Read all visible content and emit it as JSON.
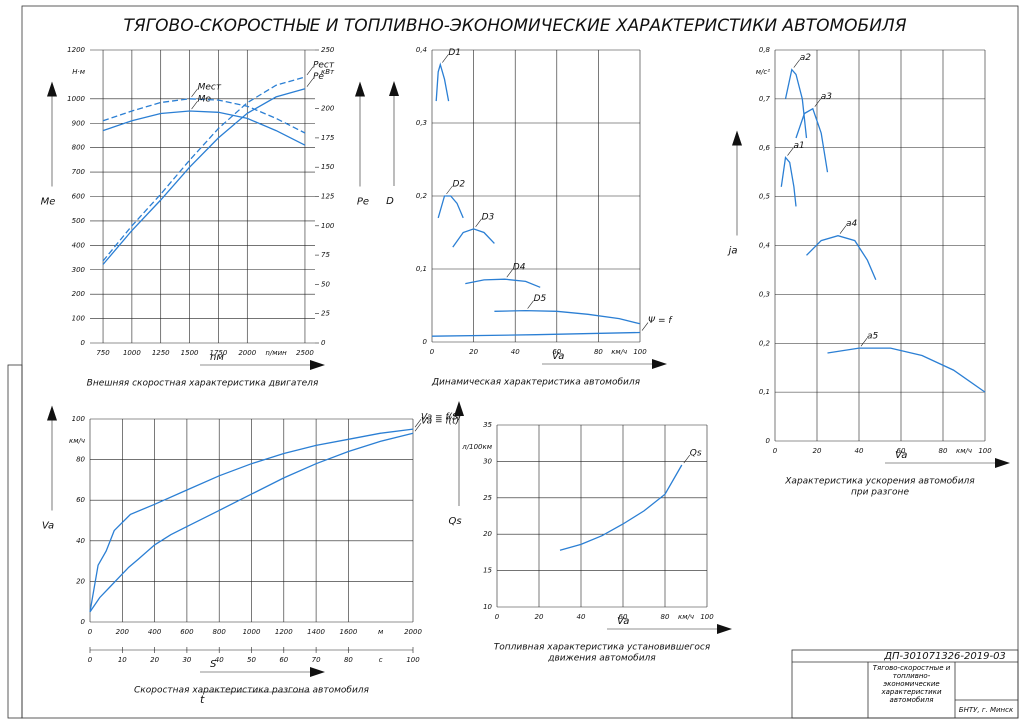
{
  "title": "ТЯГОВО-СКОРОСТНЫЕ И ТОПЛИВНО-ЭКОНОМИЧЕСКИЕ ХАРАКТЕРИСТИКИ АВТОМОБИЛЯ",
  "stamp": {
    "code": "ДП-301071326-2019-03",
    "name": "Тягово-скоростные и топливно-экономические характеристики автомобиля",
    "org": "БНТУ, г. Минск"
  },
  "chart_data": [
    {
      "type": "line",
      "caption": [
        "Внешняя скоростная характеристика двигателя"
      ],
      "xlabel": "nм",
      "ylabel": "Me",
      "y2label": "Pe",
      "xunit": "n/мин",
      "yunit": "Н·м",
      "y2unit": "кВт",
      "xlim": [
        637,
        2587
      ],
      "xticks": [
        750,
        1000,
        1250,
        1500,
        1750,
        2000,
        2500
      ],
      "ylim": [
        0,
        1200
      ],
      "yticks": [
        0,
        100,
        200,
        300,
        400,
        500,
        600,
        700,
        800,
        900,
        1000,
        1200
      ],
      "y2lim": [
        0,
        250
      ],
      "y2ticks": [
        0,
        25,
        50,
        75,
        100,
        125,
        150,
        175,
        200,
        250
      ],
      "series": [
        {
          "name": "Meст",
          "color": "#2b7fd4",
          "line_style": "dashed",
          "x": [
            750,
            1000,
            1250,
            1500,
            1750,
            2000,
            2250,
            2500
          ],
          "values": [
            910,
            950,
            985,
            1000,
            995,
            970,
            920,
            860
          ]
        },
        {
          "name": "Me",
          "color": "#2b7fd4",
          "line_style": "solid",
          "x": [
            750,
            1000,
            1250,
            1500,
            1750,
            2000,
            2250,
            2500
          ],
          "values": [
            870,
            910,
            940,
            950,
            945,
            920,
            870,
            810
          ]
        },
        {
          "name": "Peст",
          "color": "#2b7fd4",
          "line_style": "dashed",
          "axis": "y2",
          "x": [
            750,
            1000,
            1250,
            1500,
            1750,
            2000,
            2250,
            2500
          ],
          "values": [
            70,
            100,
            127,
            156,
            183,
            205,
            220,
            227
          ]
        },
        {
          "name": "Pe",
          "color": "#2b7fd4",
          "line_style": "solid",
          "axis": "y2",
          "x": [
            750,
            1000,
            1250,
            1500,
            1750,
            2000,
            2250,
            2500
          ],
          "values": [
            67,
            96,
            122,
            150,
            175,
            196,
            210,
            217
          ]
        }
      ]
    },
    {
      "type": "line",
      "caption": [
        "Динамическая характеристика автомобиля"
      ],
      "xlabel": "Va",
      "ylabel": "D",
      "xunit": "км/ч",
      "xlim": [
        0,
        100
      ],
      "xticks": [
        0,
        20,
        40,
        60,
        80,
        100
      ],
      "ylim": [
        0,
        0.4
      ],
      "yticks": [
        0,
        {
          "value": 0.1,
          "label": "0,1"
        },
        {
          "value": 0.2,
          "label": "0,2"
        },
        {
          "value": 0.3,
          "label": "0,3"
        },
        {
          "value": 0.4,
          "label": "0,4"
        }
      ],
      "series": [
        {
          "name": "D1",
          "color": "#2b7fd4",
          "line_style": "solid",
          "x": [
            2,
            3,
            4,
            6,
            8
          ],
          "values": [
            0.33,
            0.37,
            0.38,
            0.36,
            0.33
          ]
        },
        {
          "name": "D2",
          "color": "#2b7fd4",
          "line_style": "solid",
          "x": [
            3,
            6,
            9,
            12,
            15
          ],
          "values": [
            0.17,
            0.2,
            0.2,
            0.19,
            0.17
          ]
        },
        {
          "name": "D3",
          "color": "#2b7fd4",
          "line_style": "solid",
          "x": [
            10,
            15,
            20,
            25,
            30
          ],
          "values": [
            0.13,
            0.15,
            0.155,
            0.15,
            0.135
          ]
        },
        {
          "name": "D4",
          "color": "#2b7fd4",
          "line_style": "solid",
          "x": [
            16,
            25,
            35,
            45,
            52
          ],
          "values": [
            0.08,
            0.085,
            0.086,
            0.083,
            0.075
          ]
        },
        {
          "name": "D5",
          "color": "#2b7fd4",
          "line_style": "solid",
          "x": [
            30,
            45,
            60,
            75,
            90,
            100
          ],
          "values": [
            0.042,
            0.043,
            0.042,
            0.038,
            0.032,
            0.025
          ]
        },
        {
          "name": "Ψ = f",
          "color": "#2b7fd4",
          "line_style": "solid",
          "x": [
            0,
            50,
            100
          ],
          "values": [
            0.008,
            0.01,
            0.013
          ]
        }
      ]
    },
    {
      "type": "line",
      "caption": [
        "Характеристика ускорения автомобиля",
        "при разгоне"
      ],
      "xlabel": "Va",
      "ylabel": "ja",
      "xunit": "км/ч",
      "yunit": "м/с²",
      "xlim": [
        0,
        100
      ],
      "xticks": [
        0,
        20,
        40,
        60,
        80,
        100
      ],
      "ylim": [
        0,
        0.8
      ],
      "yticks": [
        0,
        {
          "value": 0.1,
          "label": "0,1"
        },
        {
          "value": 0.2,
          "label": "0,2"
        },
        {
          "value": 0.3,
          "label": "0,3"
        },
        {
          "value": 0.4,
          "label": "0,4"
        },
        {
          "value": 0.5,
          "label": "0,5"
        },
        {
          "value": 0.6,
          "label": "0,6"
        },
        {
          "value": 0.7,
          "label": "0,7"
        },
        {
          "value": 0.8,
          "label": "0,8"
        }
      ],
      "series": [
        {
          "name": "a1",
          "color": "#2b7fd4",
          "line_style": "solid",
          "x": [
            3,
            5,
            7,
            9,
            10
          ],
          "values": [
            0.52,
            0.58,
            0.57,
            0.52,
            0.48
          ]
        },
        {
          "name": "a2",
          "color": "#2b7fd4",
          "line_style": "solid",
          "x": [
            5,
            8,
            10,
            13,
            15
          ],
          "values": [
            0.7,
            0.76,
            0.75,
            0.7,
            0.62
          ]
        },
        {
          "name": "a3",
          "color": "#2b7fd4",
          "line_style": "solid",
          "x": [
            10,
            14,
            18,
            22,
            25
          ],
          "values": [
            0.62,
            0.67,
            0.68,
            0.63,
            0.55
          ]
        },
        {
          "name": "a4",
          "color": "#2b7fd4",
          "line_style": "solid",
          "x": [
            15,
            22,
            30,
            38,
            44,
            48
          ],
          "values": [
            0.38,
            0.41,
            0.42,
            0.41,
            0.37,
            0.33
          ]
        },
        {
          "name": "a5",
          "color": "#2b7fd4",
          "line_style": "solid",
          "x": [
            25,
            40,
            55,
            70,
            85,
            100
          ],
          "values": [
            0.18,
            0.19,
            0.19,
            0.175,
            0.145,
            0.1
          ]
        }
      ]
    },
    {
      "type": "line",
      "caption": [
        "Скоростная характеристика разгона автомобиля"
      ],
      "xlabel": "S",
      "x2label": "t",
      "ylabel": "Va",
      "xunit": "м",
      "x2unit": "с",
      "yunit": "км/ч",
      "xlim": [
        0,
        2000
      ],
      "xticks": [
        0,
        200,
        400,
        600,
        800,
        1000,
        1200,
        1400,
        1600,
        2000
      ],
      "x2lim": [
        0,
        100
      ],
      "x2ticks": [
        0,
        10,
        20,
        30,
        40,
        50,
        60,
        70,
        80,
        100
      ],
      "ylim": [
        0,
        100
      ],
      "yticks": [
        0,
        20,
        40,
        60,
        80,
        100
      ],
      "series": [
        {
          "name": "Va = f(S)",
          "color": "#2b7fd4",
          "line_style": "solid",
          "x": [
            0,
            50,
            100,
            150,
            250,
            400,
            600,
            800,
            1000,
            1200,
            1400,
            1600,
            1800,
            2000
          ],
          "values": [
            5,
            28,
            35,
            45,
            53,
            58,
            65,
            72,
            78,
            83,
            87,
            90,
            93,
            95
          ]
        },
        {
          "name": "Va = f(t)",
          "color": "#2b7fd4",
          "line_style": "solid",
          "axis": "x2",
          "x": [
            0,
            3,
            6,
            9,
            12,
            15,
            20,
            25,
            30,
            40,
            50,
            60,
            70,
            80,
            90,
            100
          ],
          "values": [
            5,
            12,
            17,
            22,
            27,
            31,
            38,
            43,
            47,
            55,
            63,
            71,
            78,
            84,
            89,
            93
          ]
        }
      ]
    },
    {
      "type": "line",
      "caption": [
        "Топливная характеристика установившегося",
        "движения автомобиля"
      ],
      "xlabel": "Va",
      "ylabel": "Qs",
      "xunit": "км/ч",
      "yunit": "л/100км",
      "xlim": [
        0,
        100
      ],
      "xticks": [
        0,
        20,
        40,
        60,
        80,
        100
      ],
      "ylim": [
        10,
        35
      ],
      "yticks": [
        10,
        15,
        20,
        25,
        30,
        35
      ],
      "series": [
        {
          "name": "Qs",
          "color": "#2b7fd4",
          "line_style": "solid",
          "x": [
            30,
            40,
            50,
            60,
            70,
            80,
            88
          ],
          "values": [
            17.8,
            18.6,
            19.8,
            21.4,
            23.2,
            25.5,
            29.5
          ]
        }
      ]
    }
  ]
}
